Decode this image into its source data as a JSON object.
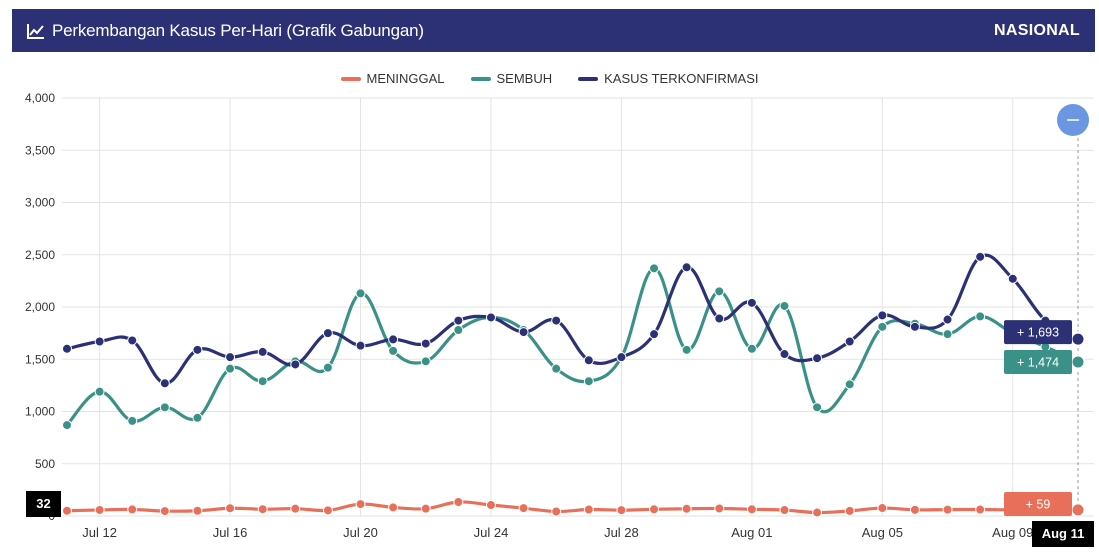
{
  "header": {
    "title": "Perkembangan Kasus Per-Hari (Grafik Gabungan)",
    "region": "NASIONAL",
    "bg_color": "#2c3175",
    "icon": "line-chart-icon"
  },
  "zoom_control": {
    "icon": "minus-icon",
    "color": "#6a96e2"
  },
  "chart_data": {
    "type": "line",
    "x": [
      "Jul 11",
      "Jul 12",
      "Jul 13",
      "Jul 14",
      "Jul 15",
      "Jul 16",
      "Jul 17",
      "Jul 18",
      "Jul 19",
      "Jul 20",
      "Jul 21",
      "Jul 22",
      "Jul 23",
      "Jul 24",
      "Jul 25",
      "Jul 26",
      "Jul 27",
      "Jul 28",
      "Jul 29",
      "Jul 30",
      "Jul 31",
      "Aug 01",
      "Aug 02",
      "Aug 03",
      "Aug 04",
      "Aug 05",
      "Aug 06",
      "Aug 07",
      "Aug 08",
      "Aug 09",
      "Aug 10",
      "Aug 11"
    ],
    "x_tick_labels": [
      "Jul 12",
      "Jul 16",
      "Jul 20",
      "Jul 24",
      "Jul 28",
      "Aug 01",
      "Aug 05",
      "Aug 09"
    ],
    "ylim": [
      0,
      4000
    ],
    "y_ticks": [
      "0",
      "500",
      "1,000",
      "1,500",
      "2,000",
      "2,500",
      "3,000",
      "3,500",
      "4,000"
    ],
    "grid": true,
    "legend_position": "top-center",
    "series": [
      {
        "name": "MENINGGAL",
        "color": "#e8705a",
        "values": [
          50,
          58,
          63,
          47,
          50,
          74,
          65,
          70,
          54,
          114,
          82,
          70,
          134,
          105,
          75,
          43,
          62,
          56,
          64,
          69,
          72,
          64,
          57,
          33,
          49,
          76,
          59,
          61,
          62,
          58,
          52,
          59
        ]
      },
      {
        "name": "SEMBUH",
        "color": "#3a9187",
        "values": [
          870,
          1190,
          910,
          1040,
          940,
          1410,
          1290,
          1480,
          1420,
          2130,
          1580,
          1480,
          1780,
          1900,
          1780,
          1410,
          1290,
          1520,
          2370,
          1590,
          2150,
          1600,
          2010,
          1040,
          1260,
          1810,
          1840,
          1740,
          1910,
          1750,
          1620,
          1474
        ]
      },
      {
        "name": "KASUS TERKONFIRMASI",
        "color": "#2c3175",
        "values": [
          1600,
          1670,
          1680,
          1270,
          1590,
          1520,
          1570,
          1450,
          1750,
          1630,
          1690,
          1650,
          1870,
          1900,
          1760,
          1870,
          1490,
          1520,
          1740,
          2380,
          1890,
          2040,
          1550,
          1510,
          1670,
          1920,
          1810,
          1880,
          2480,
          2270,
          1870,
          1693
        ]
      }
    ],
    "tooltips": {
      "x_label": "Aug 11",
      "y_label": "32",
      "confirmed": "+ 1,693",
      "recovered": "+ 1,474",
      "deaths": "+ 59"
    }
  }
}
